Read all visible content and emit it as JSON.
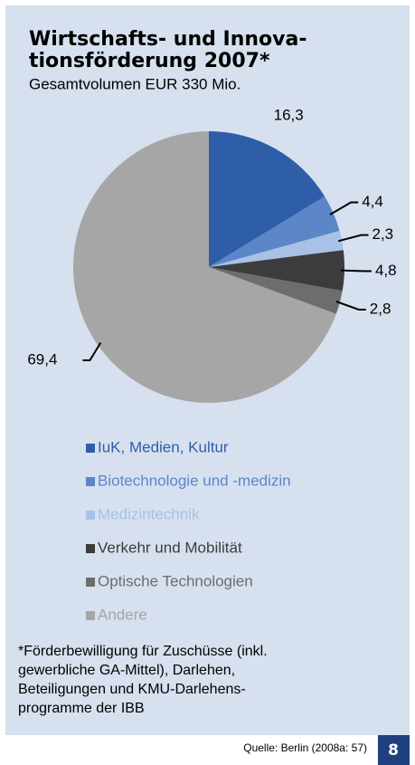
{
  "chart_data": {
    "type": "pie",
    "title": [
      "Wirtschafts- und Innova-",
      "tionsförderung 2007*"
    ],
    "subtitle": "Gesamtvolumen EUR 330 Mio.",
    "categories": [
      "IuK, Medien, Kultur",
      "Biotechnologie und -medizin",
      "Medizintechnik",
      "Verkehr und Mobilität",
      "Optische Technologien",
      "Andere"
    ],
    "values": [
      16.3,
      4.4,
      2.3,
      4.8,
      2.8,
      69.4
    ],
    "value_labels": [
      "16,3",
      "4,4",
      "2,3",
      "4,8",
      "2,8",
      "69,4"
    ],
    "colors": [
      "#2f5ea8",
      "#5b86c8",
      "#a9c1e7",
      "#3c3c3c",
      "#6d6d6d",
      "#a6a6a6"
    ],
    "footnote": [
      "*Förderbewilligung für Zuschüsse (inkl.",
      "gewerbliche GA-Mittel), Darlehen,",
      "Beteiligungen und KMU-Darlehens-",
      "programme der IBB"
    ],
    "source": "Quelle: Berlin (2008a: 57)",
    "page_number": "8"
  }
}
